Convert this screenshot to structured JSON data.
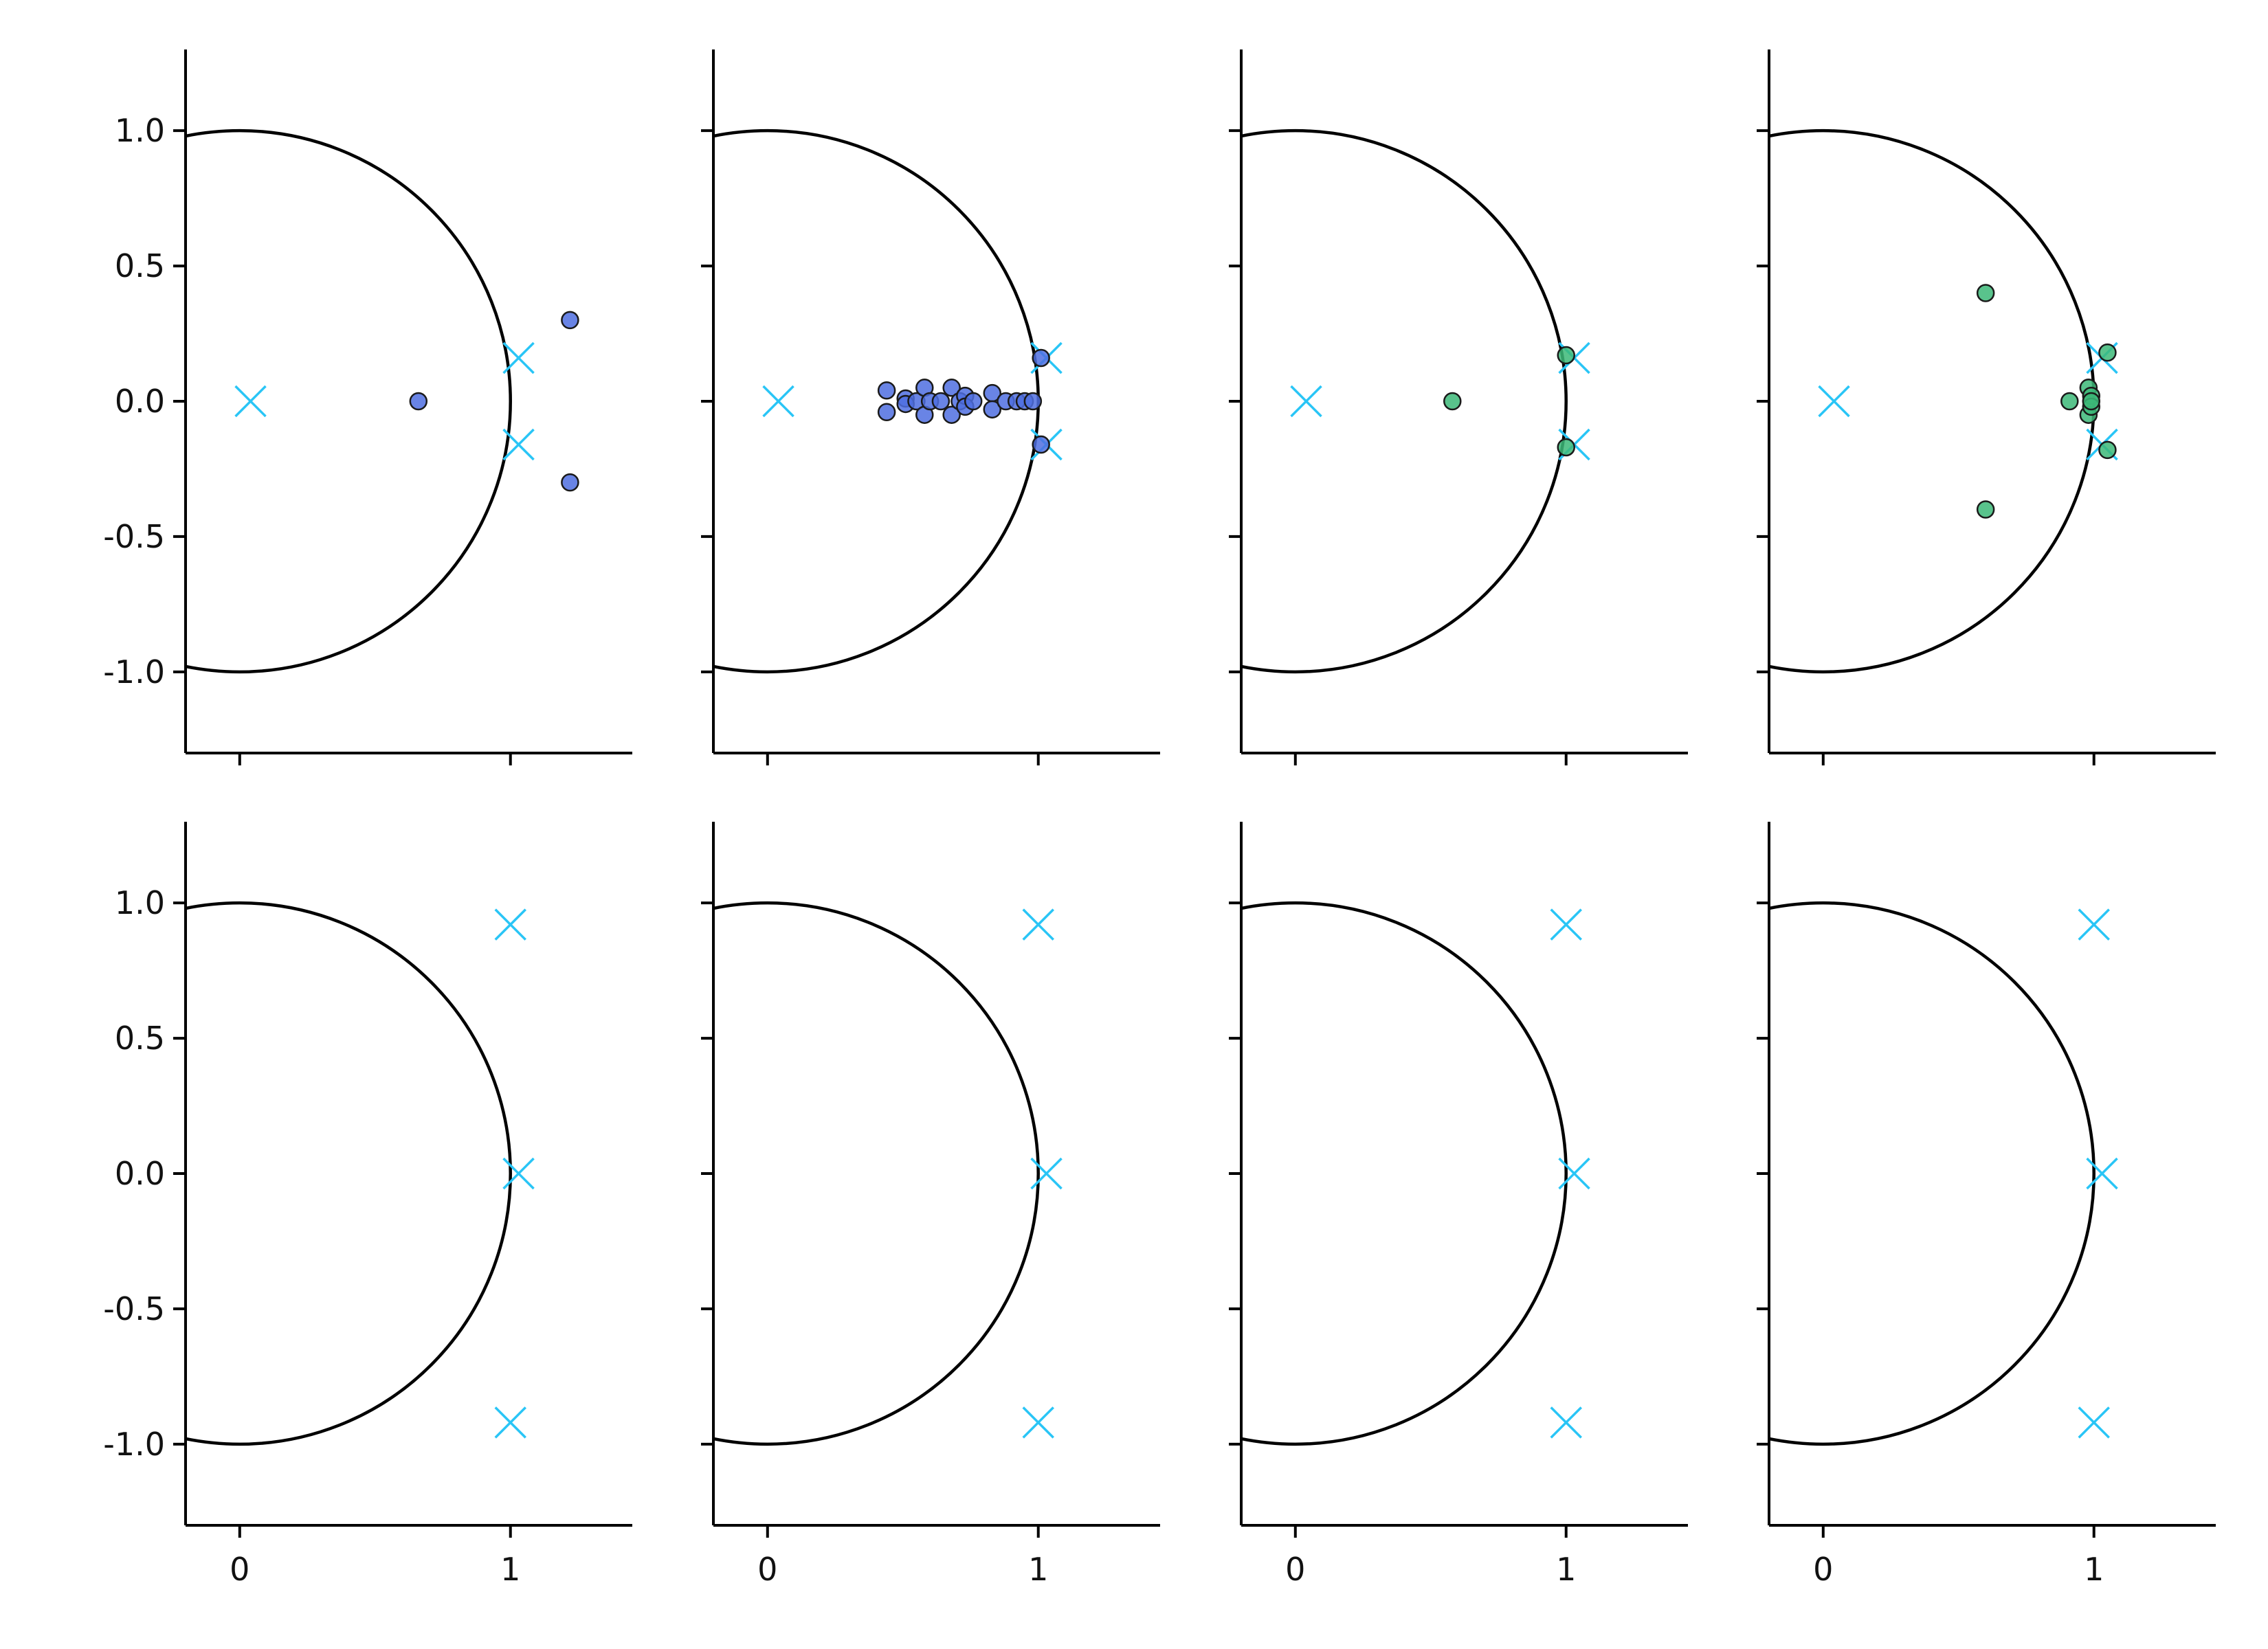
{
  "chart_data": [
    {
      "type": "scatter",
      "row": 0,
      "col": 0,
      "xlim": [
        -0.2,
        1.45
      ],
      "ylim": [
        -1.3,
        1.3
      ],
      "xticks": [
        0,
        1
      ],
      "xtick_labels": [
        "",
        ""
      ],
      "yticks": [
        1.0,
        0.5,
        0.0,
        -0.5,
        -1.0
      ],
      "ytick_labels": [
        "1.0",
        "0.5",
        "0.0",
        "-0.5",
        "-1.0"
      ],
      "unit_circle": true,
      "markers_x": [
        [
          0.04,
          0.0
        ],
        [
          1.03,
          0.16
        ],
        [
          1.03,
          -0.16
        ]
      ],
      "points": [
        [
          0.66,
          0.0
        ],
        [
          1.22,
          0.3
        ],
        [
          1.22,
          -0.3
        ]
      ],
      "point_color": "#4f6fe0"
    },
    {
      "type": "scatter",
      "row": 0,
      "col": 1,
      "xlim": [
        -0.2,
        1.45
      ],
      "ylim": [
        -1.3,
        1.3
      ],
      "xticks": [
        0,
        1
      ],
      "xtick_labels": [
        "",
        ""
      ],
      "yticks": [
        1.0,
        0.5,
        0.0,
        -0.5,
        -1.0
      ],
      "ytick_labels": [
        "",
        "",
        "",
        "",
        ""
      ],
      "unit_circle": true,
      "markers_x": [
        [
          0.04,
          0.0
        ],
        [
          1.03,
          0.16
        ],
        [
          1.03,
          -0.16
        ]
      ],
      "points": [
        [
          0.44,
          0.04
        ],
        [
          0.44,
          -0.04
        ],
        [
          0.51,
          0.01
        ],
        [
          0.51,
          -0.01
        ],
        [
          0.55,
          0.0
        ],
        [
          0.58,
          0.05
        ],
        [
          0.58,
          -0.05
        ],
        [
          0.6,
          0.0
        ],
        [
          0.64,
          0.0
        ],
        [
          0.68,
          0.05
        ],
        [
          0.68,
          -0.05
        ],
        [
          0.71,
          0.0
        ],
        [
          0.73,
          0.02
        ],
        [
          0.73,
          -0.02
        ],
        [
          0.76,
          0.0
        ],
        [
          0.83,
          0.03
        ],
        [
          0.83,
          -0.03
        ],
        [
          0.88,
          0.0
        ],
        [
          0.92,
          0.0
        ],
        [
          0.95,
          0.0
        ],
        [
          0.98,
          0.0
        ],
        [
          1.01,
          0.16
        ],
        [
          1.01,
          -0.16
        ]
      ],
      "point_color": "#4f6fe0"
    },
    {
      "type": "scatter",
      "row": 0,
      "col": 2,
      "xlim": [
        -0.2,
        1.45
      ],
      "ylim": [
        -1.3,
        1.3
      ],
      "xticks": [
        0,
        1
      ],
      "xtick_labels": [
        "",
        ""
      ],
      "yticks": [
        1.0,
        0.5,
        0.0,
        -0.5,
        -1.0
      ],
      "ytick_labels": [
        "",
        "",
        "",
        "",
        ""
      ],
      "unit_circle": true,
      "markers_x": [
        [
          0.04,
          0.0
        ],
        [
          1.03,
          0.16
        ],
        [
          1.03,
          -0.16
        ]
      ],
      "points": [
        [
          0.58,
          0.0
        ],
        [
          1.0,
          0.17
        ],
        [
          1.0,
          -0.17
        ]
      ],
      "point_color": "#3cb878"
    },
    {
      "type": "scatter",
      "row": 0,
      "col": 3,
      "xlim": [
        -0.2,
        1.45
      ],
      "ylim": [
        -1.3,
        1.3
      ],
      "xticks": [
        0,
        1
      ],
      "xtick_labels": [
        "",
        ""
      ],
      "yticks": [
        1.0,
        0.5,
        0.0,
        -0.5,
        -1.0
      ],
      "ytick_labels": [
        "",
        "",
        "",
        "",
        ""
      ],
      "unit_circle": true,
      "markers_x": [
        [
          0.04,
          0.0
        ],
        [
          1.03,
          0.16
        ],
        [
          1.03,
          -0.16
        ]
      ],
      "points": [
        [
          0.6,
          0.4
        ],
        [
          0.6,
          -0.4
        ],
        [
          0.91,
          0.0
        ],
        [
          0.98,
          0.05
        ],
        [
          0.98,
          -0.05
        ],
        [
          0.99,
          0.02
        ],
        [
          0.99,
          -0.02
        ],
        [
          0.99,
          0.0
        ],
        [
          1.05,
          0.18
        ],
        [
          1.05,
          -0.18
        ]
      ],
      "point_color": "#3cb878"
    },
    {
      "type": "scatter",
      "row": 1,
      "col": 0,
      "xlim": [
        -0.2,
        1.45
      ],
      "ylim": [
        -1.3,
        1.3
      ],
      "xticks": [
        0,
        1
      ],
      "xtick_labels": [
        "0",
        "1"
      ],
      "yticks": [
        1.0,
        0.5,
        0.0,
        -0.5,
        -1.0
      ],
      "ytick_labels": [
        "1.0",
        "0.5",
        "0.0",
        "-0.5",
        "-1.0"
      ],
      "unit_circle": true,
      "markers_x": [
        [
          1.0,
          0.92
        ],
        [
          1.03,
          0.0
        ],
        [
          1.0,
          -0.92
        ]
      ],
      "points": [],
      "point_color": "#4f6fe0"
    },
    {
      "type": "scatter",
      "row": 1,
      "col": 1,
      "xlim": [
        -0.2,
        1.45
      ],
      "ylim": [
        -1.3,
        1.3
      ],
      "xticks": [
        0,
        1
      ],
      "xtick_labels": [
        "0",
        "1"
      ],
      "yticks": [
        1.0,
        0.5,
        0.0,
        -0.5,
        -1.0
      ],
      "ytick_labels": [
        "",
        "",
        "",
        "",
        ""
      ],
      "unit_circle": true,
      "markers_x": [
        [
          1.0,
          0.92
        ],
        [
          1.03,
          0.0
        ],
        [
          1.0,
          -0.92
        ]
      ],
      "points": [],
      "point_color": "#4f6fe0"
    },
    {
      "type": "scatter",
      "row": 1,
      "col": 2,
      "xlim": [
        -0.2,
        1.45
      ],
      "ylim": [
        -1.3,
        1.3
      ],
      "xticks": [
        0,
        1
      ],
      "xtick_labels": [
        "0",
        "1"
      ],
      "yticks": [
        1.0,
        0.5,
        0.0,
        -0.5,
        -1.0
      ],
      "ytick_labels": [
        "",
        "",
        "",
        "",
        ""
      ],
      "unit_circle": true,
      "markers_x": [
        [
          1.0,
          0.92
        ],
        [
          1.03,
          0.0
        ],
        [
          1.0,
          -0.92
        ]
      ],
      "points": [],
      "point_color": "#3cb878"
    },
    {
      "type": "scatter",
      "row": 1,
      "col": 3,
      "xlim": [
        -0.2,
        1.45
      ],
      "ylim": [
        -1.3,
        1.3
      ],
      "xticks": [
        0,
        1
      ],
      "xtick_labels": [
        "0",
        "1"
      ],
      "yticks": [
        1.0,
        0.5,
        0.0,
        -0.5,
        -1.0
      ],
      "ytick_labels": [
        "",
        "",
        "",
        "",
        ""
      ],
      "unit_circle": true,
      "markers_x": [
        [
          1.0,
          0.92
        ],
        [
          1.03,
          0.0
        ],
        [
          1.0,
          -0.92
        ]
      ],
      "points": [],
      "point_color": "#3cb878"
    }
  ],
  "colors": {
    "x_marker": "#29c5f6",
    "circle": "#000000",
    "point_edge": "#1a1a1a"
  }
}
